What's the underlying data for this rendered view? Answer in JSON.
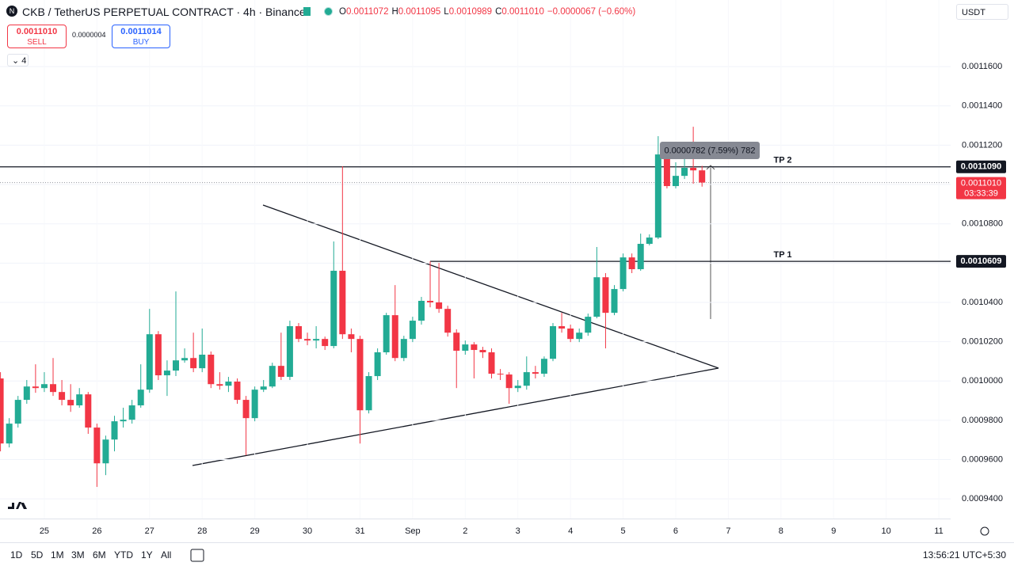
{
  "chart_data": {
    "type": "candlestick",
    "title": "CKB / TetherUS PERPETUAL CONTRACT · 4h · Binance",
    "categories": [
      null,
      null,
      null,
      null,
      null,
      "25",
      null,
      null,
      null,
      null,
      null,
      "26",
      null,
      null,
      null,
      null,
      null,
      "27",
      null,
      null,
      null,
      null,
      null,
      "28",
      null,
      null,
      null,
      null,
      null,
      "29",
      null,
      null,
      null,
      null,
      null,
      "30",
      null,
      null,
      null,
      null,
      null,
      "31",
      null,
      null,
      null,
      null,
      null,
      "Sep",
      null,
      null,
      null,
      null,
      null,
      "2",
      null,
      null,
      null,
      null,
      null,
      "3",
      null,
      null,
      null,
      null,
      null,
      "4",
      null,
      null,
      null,
      null,
      null,
      "5",
      null,
      null,
      null,
      null,
      null,
      "6",
      null,
      null,
      null,
      null,
      null,
      "7",
      null,
      null,
      null,
      null,
      null,
      "8",
      null,
      null,
      null,
      null,
      null,
      "9",
      null,
      null,
      null,
      null,
      null,
      "10",
      null,
      null,
      null,
      null,
      null,
      "11"
    ],
    "open": [
      0.0010013,
      0.0009682,
      0.0009783,
      0.0009904,
      0.0009972,
      0.0009964,
      0.0009984,
      0.0009944,
      0.0009904,
      0.0009876,
      0.0009932,
      0.0009763,
      0.0009581,
      0.0009702,
      0.0009795,
      0.0009803,
      0.0009876,
      0.0009956,
      0.0010238,
      0.0010029,
      0.0010053,
      0.0010105,
      0.0010117,
      0.0010065,
      0.0010134,
      0.0009984,
      0.0009976,
      0.0009997,
      0.0009904,
      0.0009811,
      0.0009956,
      0.0009972,
      0.0010077,
      0.0010021,
      0.0010279,
      0.0010214,
      0.0010206,
      0.0010214,
      0.0010178,
      0.0010561,
      0.0010238,
      0.0010214,
      0.0009851,
      0.0010025,
      0.0010146,
      0.0010335,
      0.0010117,
      0.0010214,
      0.0010307,
      0.0010408,
      0.00104,
      0.0010367,
      0.0010246,
      0.0010154,
      0.0010186,
      0.0010158,
      0.0010146,
      0.0010037,
      0.0010033,
      0.0009964,
      0.0009976,
      0.0010045,
      0.0010037,
      0.0010113,
      0.0010279,
      0.0010267,
      0.0010214,
      0.0010246,
      0.0010327,
      0.0010528,
      0.0010347,
      0.0010468,
      0.0010629,
      0.0010569,
      0.0010698,
      0.001073,
      0.0011153,
      0.0010992,
      0.0011044,
      0.0011085,
      0.0011072,
      null,
      null,
      null,
      null,
      null,
      null,
      null,
      null,
      null,
      null,
      null,
      null,
      null,
      null,
      null,
      null,
      null,
      null,
      null,
      null,
      null,
      null,
      null,
      null,
      null,
      null,
      null
    ],
    "high": [
      0.0010045,
      0.0009811,
      0.0009924,
      0.0010005,
      0.0010085,
      0.0010045,
      0.0010117,
      0.0010005,
      0.0009984,
      0.0009964,
      0.0009944,
      0.0009783,
      0.0009722,
      0.0009823,
      0.0009864,
      0.0009904,
      0.0010085,
      0.0010367,
      0.0010254,
      0.0010105,
      0.0010456,
      0.0010166,
      0.0010246,
      0.0010267,
      0.001015,
      0.0010045,
      0.0010021,
      0.0010013,
      0.0009924,
      0.0009972,
      0.0010005,
      0.0010093,
      0.0010246,
      0.0010307,
      0.0010295,
      0.0010246,
      0.0010279,
      0.0010226,
      0.001071,
      0.0011093,
      0.0010267,
      0.001023,
      0.0010045,
      0.0010166,
      0.0010347,
      0.0010488,
      0.001023,
      0.0010327,
      0.0010428,
      0.0010609,
      0.0010601,
      0.0010383,
      0.0010263,
      0.0010206,
      0.0010198,
      0.0010174,
      0.0010166,
      0.0010061,
      0.0010045,
      0.0010005,
      0.0010125,
      0.0010077,
      0.0010125,
      0.0010295,
      0.0010347,
      0.0010287,
      0.0010267,
      0.0010343,
      0.0010682,
      0.0010549,
      0.0010488,
      0.0010649,
      0.0010649,
      0.001075,
      0.0010746,
      0.0011246,
      0.0011173,
      0.0011113,
      0.0011193,
      0.0011294,
      0.0011095,
      null,
      null,
      null,
      null,
      null,
      null,
      null,
      null,
      null,
      null,
      null,
      null,
      null,
      null,
      null,
      null,
      null,
      null,
      null,
      null,
      null,
      null,
      null,
      null,
      null,
      null,
      null
    ],
    "low": [
      0.0009642,
      0.0009662,
      0.0009763,
      0.0009884,
      0.000994,
      0.0009944,
      0.0009924,
      0.0009876,
      0.0009843,
      0.0009864,
      0.0009731,
      0.0009461,
      0.0009521,
      0.0009642,
      0.0009763,
      0.0009783,
      0.0009864,
      0.000994,
      0.0010005,
      0.0009924,
      0.0010025,
      0.0010093,
      0.0010045,
      0.0010045,
      0.0009964,
      0.0009956,
      0.0009944,
      0.0009884,
      0.0009622,
      0.0009795,
      0.0009944,
      0.0009964,
      0.0010005,
      0.0010005,
      0.0010198,
      0.0010182,
      0.0010166,
      0.0010158,
      0.0010166,
      0.0010214,
      0.0010146,
      0.0009682,
      0.0009835,
      0.0010005,
      0.0010134,
      0.0010101,
      0.0010101,
      0.0010198,
      0.0010287,
      0.0010375,
      0.0010347,
      0.0010226,
      0.0009964,
      0.0010134,
      0.0010013,
      0.0010117,
      0.0010013,
      0.0010005,
      0.0009884,
      0.0009944,
      0.0009956,
      0.0010013,
      0.0010021,
      0.0010101,
      0.0010246,
      0.0010198,
      0.0010198,
      0.001023,
      0.0010319,
      0.0010166,
      0.0010335,
      0.0010456,
      0.0010549,
      0.0010561,
      0.001069,
      0.0010722,
      0.001098,
      0.001098,
      0.0011028,
      0.0011004,
      0.0010989,
      null,
      null,
      null,
      null,
      null,
      null,
      null,
      null,
      null,
      null,
      null,
      null,
      null,
      null,
      null,
      null,
      null,
      null,
      null,
      null,
      null,
      null,
      null,
      null,
      null,
      null,
      null
    ],
    "close": [
      0.0009682,
      0.0009783,
      0.0009904,
      0.0009972,
      0.0009964,
      0.0009984,
      0.0009944,
      0.0009904,
      0.0009876,
      0.0009932,
      0.0009763,
      0.0009581,
      0.0009702,
      0.0009795,
      0.0009803,
      0.0009876,
      0.0009956,
      0.0010238,
      0.0010029,
      0.0010053,
      0.0010105,
      0.0010117,
      0.0010065,
      0.0010134,
      0.0009984,
      0.0009976,
      0.0009997,
      0.0009904,
      0.0009811,
      0.0009956,
      0.0009972,
      0.0010077,
      0.0010021,
      0.0010279,
      0.0010214,
      0.0010206,
      0.0010214,
      0.0010178,
      0.0010561,
      0.0010238,
      0.0010214,
      0.0009851,
      0.0010025,
      0.0010146,
      0.0010335,
      0.0010117,
      0.0010214,
      0.0010307,
      0.0010408,
      0.00104,
      0.0010367,
      0.0010246,
      0.0010154,
      0.0010186,
      0.0010158,
      0.0010146,
      0.0010037,
      0.0010033,
      0.0009964,
      0.0009976,
      0.0010045,
      0.0010037,
      0.0010113,
      0.0010279,
      0.0010267,
      0.0010214,
      0.0010246,
      0.0010327,
      0.0010528,
      0.0010347,
      0.0010468,
      0.0010629,
      0.0010569,
      0.0010698,
      0.001073,
      0.0011153,
      0.0010992,
      0.0011044,
      0.0011085,
      0.0011072,
      0.001101,
      null,
      null,
      null,
      null,
      null,
      null,
      null,
      null,
      null,
      null,
      null,
      null,
      null,
      null,
      null,
      null,
      null,
      null,
      null,
      null,
      null,
      null,
      null,
      null,
      null,
      null,
      null
    ],
    "up_color": "#22ab94",
    "down_color": "#f23645",
    "ylim": [
      0.00093,
      0.0011939
    ],
    "yticks": [
      {
        "value": 0.00094,
        "label": "0.0009400"
      },
      {
        "value": 0.00096,
        "label": "0.0009600"
      },
      {
        "value": 0.00098,
        "label": "0.0009800"
      },
      {
        "value": 0.001,
        "label": "0.0010000"
      },
      {
        "value": 0.00102,
        "label": "0.0010200"
      },
      {
        "value": 0.00104,
        "label": "0.0010400"
      },
      {
        "value": 0.00106,
        "label": "0.0010600"
      },
      {
        "value": 0.00108,
        "label": "0.0010800"
      },
      {
        "value": 0.0011,
        "label": "0.0011000"
      },
      {
        "value": 0.00112,
        "label": "0.0011200"
      },
      {
        "value": 0.00114,
        "label": "0.0011400"
      },
      {
        "value": 0.00116,
        "label": "0.0011600"
      }
    ],
    "grid": true,
    "price_lines": [
      {
        "name": "TP 2",
        "value": 0.001109,
        "label": "0.0011090"
      },
      {
        "name": "TP 1",
        "value": 0.0010609,
        "label": "0.0010609"
      }
    ],
    "last_price": {
      "value": 0.001101,
      "label": "0.0011010",
      "countdown": "03:33:39"
    },
    "measure": "0.0000782 (7.59%) 782",
    "ohlc_legend": [
      {
        "key": "O",
        "text": "0.0011072"
      },
      {
        "key": "H",
        "text": "0.0011095"
      },
      {
        "key": "L",
        "text": "0.0010989"
      },
      {
        "key": "C",
        "text": "0.0011010"
      }
    ],
    "change": "−0.0000067 (−0.60%)"
  },
  "trade_panel": {
    "sell_price": "0.0011010",
    "sell": "SELL",
    "spread": "0.0000004",
    "buy_price": "0.0011014",
    "buy": "BUY"
  },
  "indicators_count": "4",
  "currency": "USDT",
  "timeframes": [
    "1D",
    "5D",
    "1M",
    "3M",
    "6M",
    "YTD",
    "1Y",
    "All"
  ],
  "clock": "13:56:21 UTC+5:30"
}
